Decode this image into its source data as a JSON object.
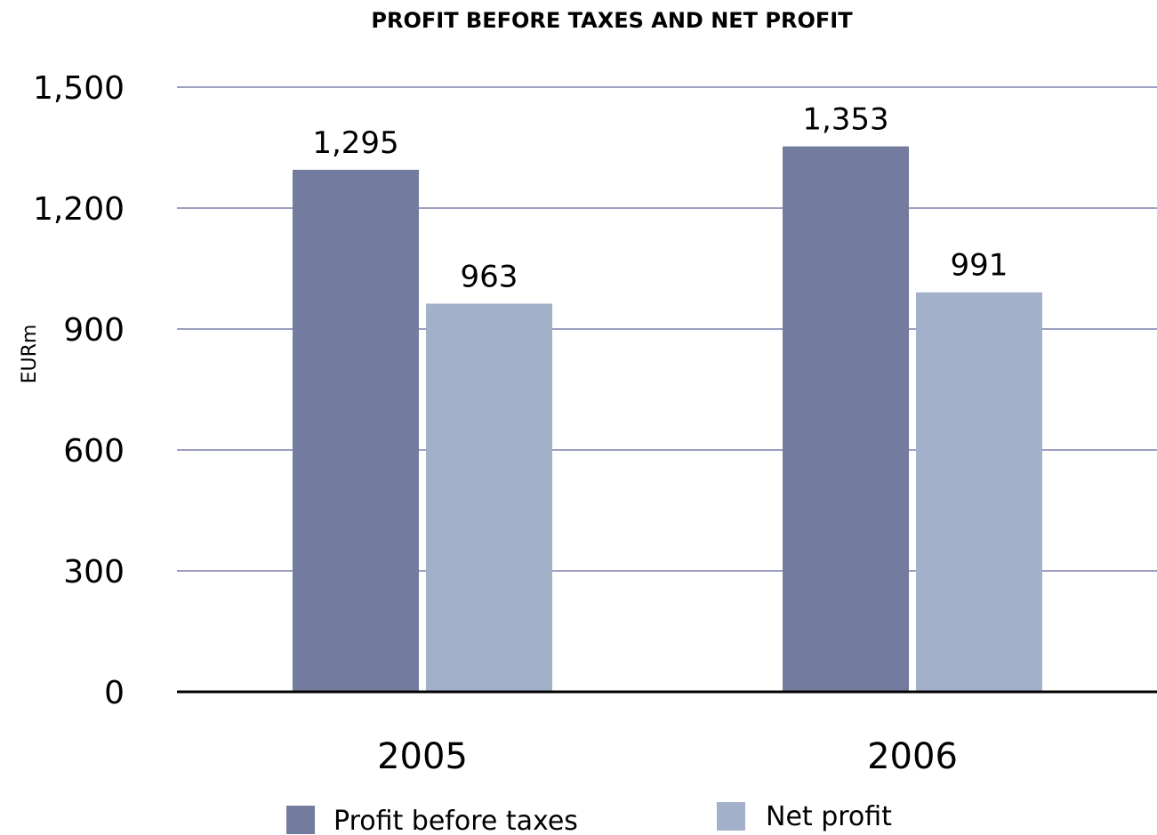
{
  "chart_data": {
    "type": "bar",
    "title": "PROFIT BEFORE TAXES AND NET PROFIT",
    "xlabel": "",
    "ylabel": "EURm",
    "ylim": [
      0,
      1500
    ],
    "yticks": [
      0,
      300,
      600,
      900,
      1200,
      1500
    ],
    "ytick_labels": [
      "0",
      "300",
      "600",
      "900",
      "1,200",
      "1,500"
    ],
    "grid": true,
    "legend_position": "bottom",
    "categories": [
      "2005",
      "2006"
    ],
    "series": [
      {
        "name": "Profit before taxes",
        "values": [
          1295,
          1353
        ],
        "labels": [
          "1,295",
          "1,353"
        ],
        "color": "#737b9e"
      },
      {
        "name": "Net profit",
        "values": [
          963,
          991
        ],
        "labels": [
          "963",
          "991"
        ],
        "color": "#a3b0ca"
      }
    ],
    "colors": {
      "grid": "#7b7fad",
      "axis": "#000000",
      "text": "#000000"
    }
  }
}
